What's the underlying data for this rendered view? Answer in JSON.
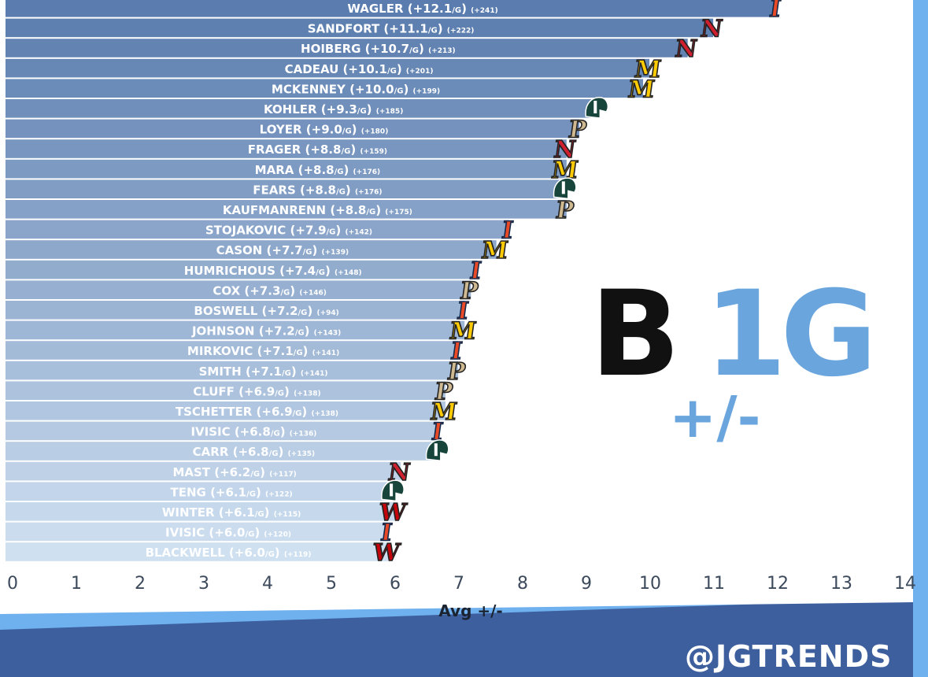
{
  "brand": {
    "main_dark": "B",
    "main_light": "1G",
    "sub": "+/-",
    "handle": "@JGTRENDS"
  },
  "colors": {
    "bar_top": "#5a7cae",
    "bar_bottom": "#cfe0f1",
    "brand_blue": "#6aa6dd",
    "frame_dark": "#3d5f9e",
    "frame_light": "#6fb0ee",
    "illinois": "#e84a27",
    "nebraska": "#d01f2f",
    "michigan": "#ffcb05",
    "michigan_state": "#18453b",
    "purdue": "#cfb991",
    "wisconsin": "#c5050c"
  },
  "chart_data": {
    "type": "bar",
    "orientation": "horizontal",
    "xlabel": "Avg +/-",
    "xlim": [
      0,
      14
    ],
    "xticks": [
      "0",
      "1",
      "2",
      "3",
      "4",
      "5",
      "6",
      "7",
      "8",
      "9",
      "10",
      "11",
      "12",
      "13",
      "14"
    ],
    "grid": false,
    "legend": "none",
    "bars": [
      {
        "name": "WAGLER",
        "value": 12.1,
        "label": "+12.1",
        "total": "(+241)",
        "team": "Illinois",
        "icon": "illinois-i-icon"
      },
      {
        "name": "SANDFORT",
        "value": 11.1,
        "label": "+11.1",
        "total": "(+222)",
        "team": "Nebraska",
        "icon": "nebraska-n-icon"
      },
      {
        "name": "HOIBERG",
        "value": 10.7,
        "label": "+10.7",
        "total": "(+213)",
        "team": "Nebraska",
        "icon": "nebraska-n-icon"
      },
      {
        "name": "CADEAU",
        "value": 10.1,
        "label": "+10.1",
        "total": "(+201)",
        "team": "Michigan",
        "icon": "michigan-m-icon"
      },
      {
        "name": "MCKENNEY",
        "value": 10.0,
        "label": "+10.0",
        "total": "(+199)",
        "team": "Michigan",
        "icon": "michigan-m-icon"
      },
      {
        "name": "KOHLER",
        "value": 9.3,
        "label": "+9.3",
        "total": "(+185)",
        "team": "Michigan State",
        "icon": "spartan-helmet-icon"
      },
      {
        "name": "LOYER",
        "value": 9.0,
        "label": "+9.0",
        "total": "(+180)",
        "team": "Purdue",
        "icon": "purdue-p-icon"
      },
      {
        "name": "FRAGER",
        "value": 8.8,
        "label": "+8.8",
        "total": "(+159)",
        "team": "Nebraska",
        "icon": "nebraska-n-icon"
      },
      {
        "name": "MARA",
        "value": 8.8,
        "label": "+8.8",
        "total": "(+176)",
        "team": "Michigan",
        "icon": "michigan-m-icon"
      },
      {
        "name": "FEARS",
        "value": 8.8,
        "label": "+8.8",
        "total": "(+176)",
        "team": "Michigan State",
        "icon": "spartan-helmet-icon"
      },
      {
        "name": "KAUFMANRENN",
        "value": 8.8,
        "label": "+8.8",
        "total": "(+175)",
        "team": "Purdue",
        "icon": "purdue-p-icon"
      },
      {
        "name": "STOJAKOVIC",
        "value": 7.9,
        "label": "+7.9",
        "total": "(+142)",
        "team": "Illinois",
        "icon": "illinois-i-icon"
      },
      {
        "name": "CASON",
        "value": 7.7,
        "label": "+7.7",
        "total": "(+139)",
        "team": "Michigan",
        "icon": "michigan-m-icon"
      },
      {
        "name": "HUMRICHOUS",
        "value": 7.4,
        "label": "+7.4",
        "total": "(+148)",
        "team": "Illinois",
        "icon": "illinois-i-icon"
      },
      {
        "name": "COX",
        "value": 7.3,
        "label": "+7.3",
        "total": "(+146)",
        "team": "Purdue",
        "icon": "purdue-p-icon"
      },
      {
        "name": "BOSWELL",
        "value": 7.2,
        "label": "+7.2",
        "total": "(+94)",
        "team": "Illinois",
        "icon": "illinois-i-icon"
      },
      {
        "name": "JOHNSON",
        "value": 7.2,
        "label": "+7.2",
        "total": "(+143)",
        "team": "Michigan",
        "icon": "michigan-m-icon"
      },
      {
        "name": "MIRKOVIC",
        "value": 7.1,
        "label": "+7.1",
        "total": "(+141)",
        "team": "Illinois",
        "icon": "illinois-i-icon"
      },
      {
        "name": "SMITH",
        "value": 7.1,
        "label": "+7.1",
        "total": "(+141)",
        "team": "Purdue",
        "icon": "purdue-p-icon"
      },
      {
        "name": "CLUFF",
        "value": 6.9,
        "label": "+6.9",
        "total": "(+138)",
        "team": "Purdue",
        "icon": "purdue-p-icon"
      },
      {
        "name": "TSCHETTER",
        "value": 6.9,
        "label": "+6.9",
        "total": "(+138)",
        "team": "Michigan",
        "icon": "michigan-m-icon"
      },
      {
        "name": "IVISIC",
        "value": 6.8,
        "label": "+6.8",
        "total": "(+136)",
        "team": "Illinois",
        "icon": "illinois-i-icon"
      },
      {
        "name": "CARR",
        "value": 6.8,
        "label": "+6.8",
        "total": "(+135)",
        "team": "Michigan State",
        "icon": "spartan-helmet-icon"
      },
      {
        "name": "MAST",
        "value": 6.2,
        "label": "+6.2",
        "total": "(+117)",
        "team": "Nebraska",
        "icon": "nebraska-n-icon"
      },
      {
        "name": "TENG",
        "value": 6.1,
        "label": "+6.1",
        "total": "(+122)",
        "team": "Michigan State",
        "icon": "spartan-helmet-icon"
      },
      {
        "name": "WINTER",
        "value": 6.1,
        "label": "+6.1",
        "total": "(+115)",
        "team": "Wisconsin",
        "icon": "wisconsin-w-icon"
      },
      {
        "name": "IVISIC",
        "value": 6.0,
        "label": "+6.0",
        "total": "(+120)",
        "team": "Illinois",
        "icon": "illinois-i-icon"
      },
      {
        "name": "BLACKWELL",
        "value": 6.0,
        "label": "+6.0",
        "total": "(+119)",
        "team": "Wisconsin",
        "icon": "wisconsin-w-icon"
      }
    ],
    "value_suffix": "/G"
  }
}
